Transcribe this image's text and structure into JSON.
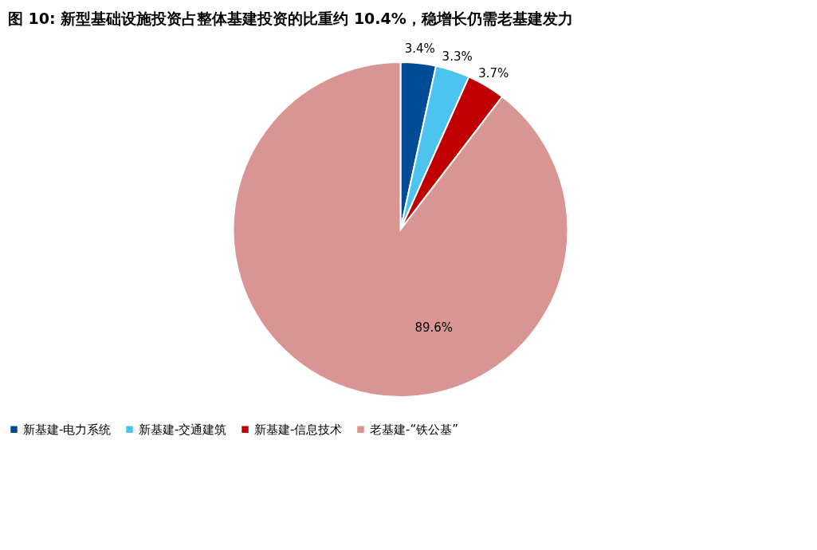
{
  "chart_data": {
    "type": "pie",
    "title": "图 10: 新型基础设施投资占整体基建投资的比重约 10.4%，稳增长仍需老基建发力",
    "categories": [
      "新基建-电力系统",
      "新基建-交通建筑",
      "新基建-信息技术",
      "老基建-“铁公基”"
    ],
    "values": [
      3.4,
      3.3,
      3.7,
      89.6
    ],
    "colors": [
      "#004c97",
      "#4dc3f0",
      "#c00000",
      "#d99594"
    ],
    "value_labels": [
      "3.4%",
      "3.3%",
      "3.7%",
      "89.6%"
    ],
    "legend": "bottom"
  }
}
